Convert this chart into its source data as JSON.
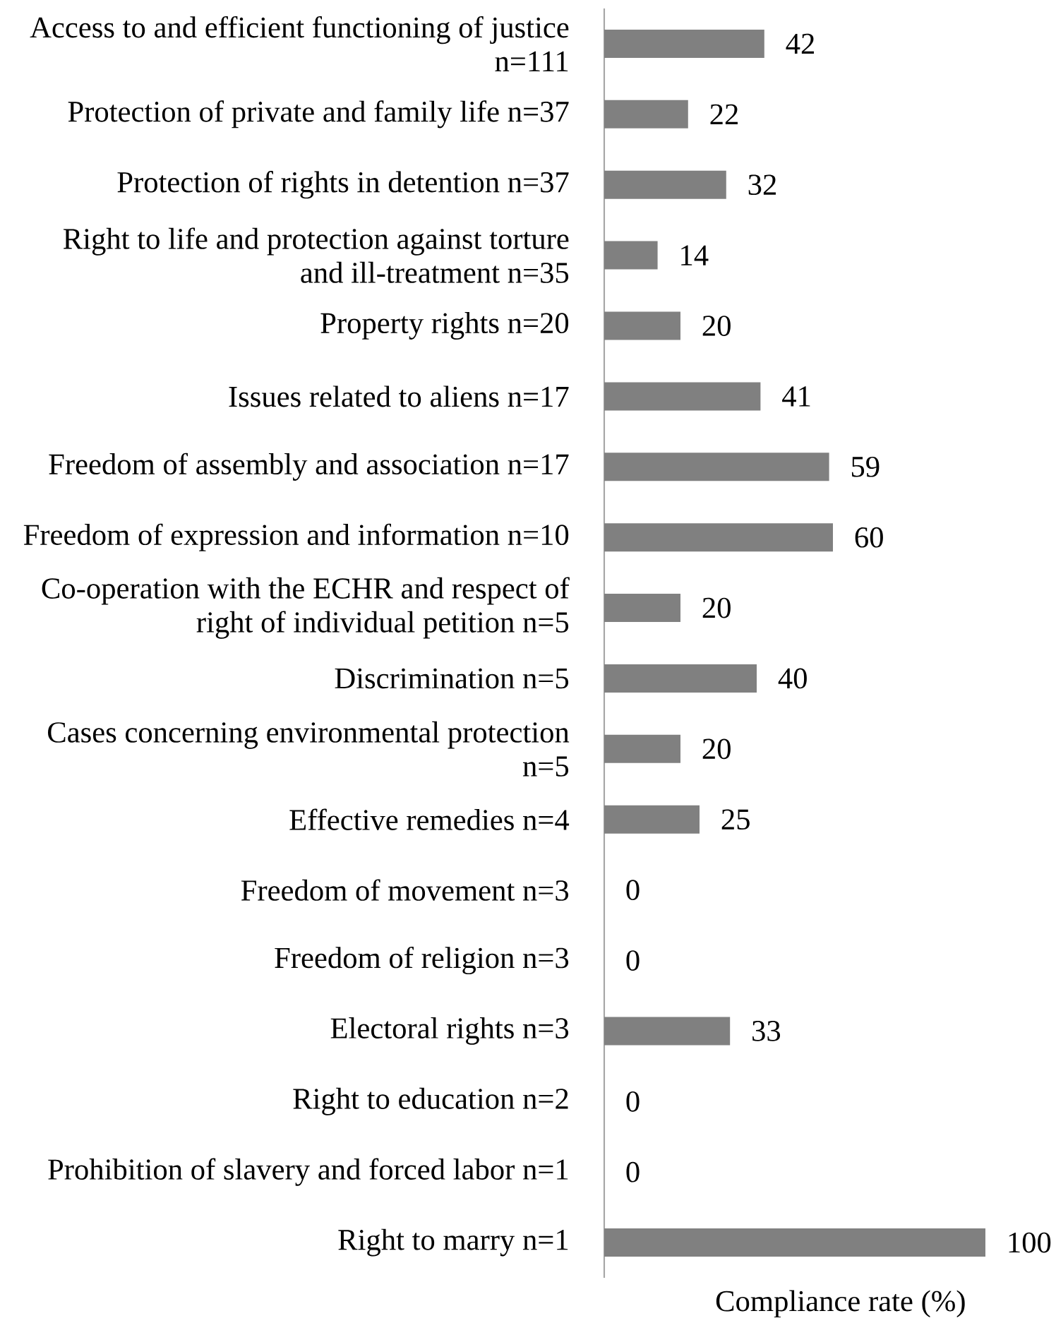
{
  "chart_data": {
    "type": "bar",
    "orientation": "horizontal",
    "categories": [
      "Access to and efficient functioning of justice n=111",
      "Protection of private and family life n=37",
      "Protection of rights in detention n=37",
      "Right to life and protection against torture and ill-treatment n=35",
      "Property rights n=20",
      "Issues related to aliens n=17",
      "Freedom of assembly and association n=17",
      "Freedom of expression and information n=10",
      "Co-operation with the ECHR and respect of right of individual petition n=5",
      "Discrimination n=5",
      "Cases concerning environmental protection n=5",
      "Effective remedies n=4",
      "Freedom of movement n=3",
      "Freedom of religion n=3",
      "Electoral rights n=3",
      "Right to education n=2",
      "Prohibition of slavery and forced labor n=1",
      "Right to marry n=1"
    ],
    "values": [
      42,
      22,
      32,
      14,
      20,
      41,
      59,
      60,
      20,
      40,
      20,
      25,
      0,
      0,
      33,
      0,
      0,
      100
    ],
    "color": "#808080",
    "xlabel": "Compliance rate (%)",
    "data_labels": true,
    "tick_labels": "y"
  }
}
